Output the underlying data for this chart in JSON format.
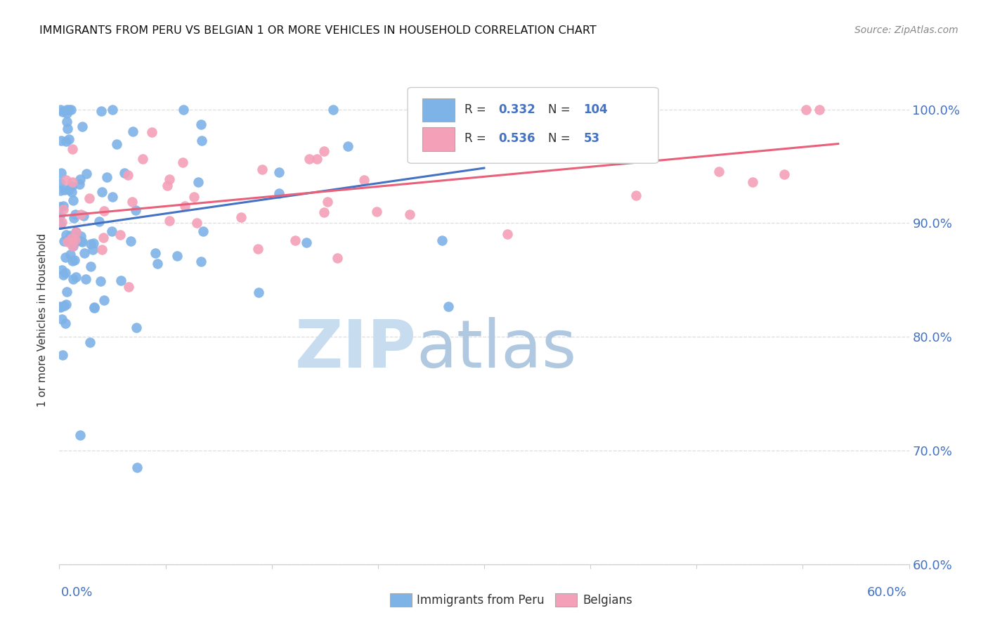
{
  "title": "IMMIGRANTS FROM PERU VS BELGIAN 1 OR MORE VEHICLES IN HOUSEHOLD CORRELATION CHART",
  "source": "Source: ZipAtlas.com",
  "ylabel_label": "1 or more Vehicles in Household",
  "legend1_label": "Immigrants from Peru",
  "legend2_label": "Belgians",
  "R1": 0.332,
  "N1": 104,
  "R2": 0.536,
  "N2": 53,
  "color_peru": "#7EB3E8",
  "color_belgian": "#F4A0B8",
  "color_line_peru": "#4472C4",
  "color_line_belgian": "#E8607A",
  "color_axis_labels": "#4472C4",
  "background_color": "#ffffff",
  "grid_color": "#DDDDDD",
  "xlim": [
    0.0,
    60.0
  ],
  "ylim": [
    60.0,
    103.0
  ],
  "y_ticks": [
    60,
    70,
    80,
    90,
    100
  ],
  "watermark_zip": "ZIP",
  "watermark_atlas": "atlas",
  "watermark_color_zip": "#C8DCEF",
  "watermark_color_atlas": "#B0C8E0"
}
